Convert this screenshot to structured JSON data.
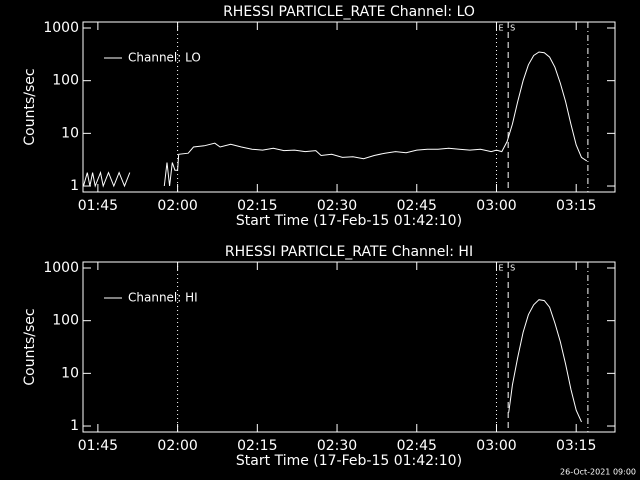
{
  "chart_data": [
    {
      "type": "line",
      "title": "RHESSI PARTICLE_RATE Channel: LO",
      "x_label": "Start Time (17-Feb-15 01:42:10)",
      "y_label": "Counts/sec",
      "log_y": true,
      "legend": "upper left",
      "color": "#ffffff",
      "xlim": [
        102.2,
        202.3
      ],
      "ylim": [
        0.77,
        1300
      ],
      "xticks": [
        {
          "value": 105,
          "label": "01:45"
        },
        {
          "value": 120,
          "label": "02:00"
        },
        {
          "value": 135,
          "label": "02:15"
        },
        {
          "value": 150,
          "label": "02:30"
        },
        {
          "value": 165,
          "label": "02:45"
        },
        {
          "value": 180,
          "label": "03:00"
        },
        {
          "value": 195,
          "label": "03:15"
        }
      ],
      "yticks": [
        1,
        10,
        100,
        1000
      ],
      "vlines": [
        {
          "x": 120,
          "dash": "dotted"
        },
        {
          "x": 180,
          "dash": "dotted",
          "label": "E"
        },
        {
          "x": 182.2,
          "dash": "dashed",
          "label": "S"
        },
        {
          "x": 197.2,
          "dash": "dash-dot"
        }
      ],
      "x": [
        102.3,
        103,
        103.5,
        104,
        104.5,
        105.5,
        106,
        107,
        108,
        109,
        110,
        111,
        112,
        117.5,
        118,
        118.5,
        119,
        119.5,
        120,
        120.2,
        122,
        123,
        125,
        127,
        128,
        130,
        132,
        134,
        136,
        138,
        140,
        142,
        144,
        146,
        147,
        149,
        151,
        153,
        155,
        157,
        159,
        161,
        163,
        165,
        167,
        169,
        171,
        173,
        175,
        177,
        179,
        180,
        181,
        182,
        183,
        184,
        185,
        186,
        187,
        188,
        189,
        190,
        191,
        192,
        193,
        194,
        195,
        196,
        197
      ],
      "series": [
        {
          "name": "Channel: LO",
          "color": "#ffffff",
          "values": [
            1,
            1.8,
            1,
            1.8,
            1,
            1.8,
            1,
            1.8,
            1,
            1.8,
            1,
            1.8,
            null,
            1,
            2.8,
            1,
            2.8,
            2,
            2,
            4,
            4.2,
            5.5,
            5.8,
            6.5,
            5.5,
            6.2,
            5.5,
            5,
            4.8,
            5.2,
            4.7,
            4.8,
            4.5,
            4.7,
            3.8,
            4,
            3.5,
            3.6,
            3.3,
            3.8,
            4.2,
            4.5,
            4.3,
            4.8,
            5,
            5,
            5.2,
            5,
            4.8,
            5,
            4.5,
            4.8,
            4.5,
            7,
            15,
            40,
            100,
            200,
            300,
            350,
            340,
            280,
            180,
            90,
            40,
            15,
            6,
            3.5,
            3
          ]
        }
      ]
    },
    {
      "type": "line",
      "title": "RHESSI PARTICLE_RATE Channel: HI",
      "x_label": "Start Time (17-Feb-15 01:42:10)",
      "y_label": "Counts/sec",
      "log_y": true,
      "legend": "upper left",
      "color": "#ffffff",
      "xlim": [
        102.2,
        202.3
      ],
      "ylim": [
        0.77,
        1300
      ],
      "xticks": [
        {
          "value": 105,
          "label": "01:45"
        },
        {
          "value": 120,
          "label": "02:00"
        },
        {
          "value": 135,
          "label": "02:15"
        },
        {
          "value": 150,
          "label": "02:30"
        },
        {
          "value": 165,
          "label": "02:45"
        },
        {
          "value": 180,
          "label": "03:00"
        },
        {
          "value": 195,
          "label": "03:15"
        }
      ],
      "yticks": [
        1,
        10,
        100,
        1000
      ],
      "vlines": [
        {
          "x": 120,
          "dash": "dotted"
        },
        {
          "x": 180,
          "dash": "dotted",
          "label": "E"
        },
        {
          "x": 182.2,
          "dash": "dashed",
          "label": "S"
        },
        {
          "x": 197.2,
          "dash": "dash-dot"
        }
      ],
      "x": [
        182.3,
        182.6,
        183,
        184,
        185,
        186,
        187,
        188,
        189,
        190,
        191,
        192,
        193,
        194,
        195,
        196
      ],
      "series": [
        {
          "name": "Channel: HI",
          "color": "#ffffff",
          "values": [
            1.8,
            3,
            6,
            20,
            60,
            130,
            200,
            250,
            240,
            180,
            90,
            40,
            15,
            5,
            2,
            1.2
          ]
        }
      ]
    }
  ],
  "footer": "26-Oct-2021 09:00"
}
